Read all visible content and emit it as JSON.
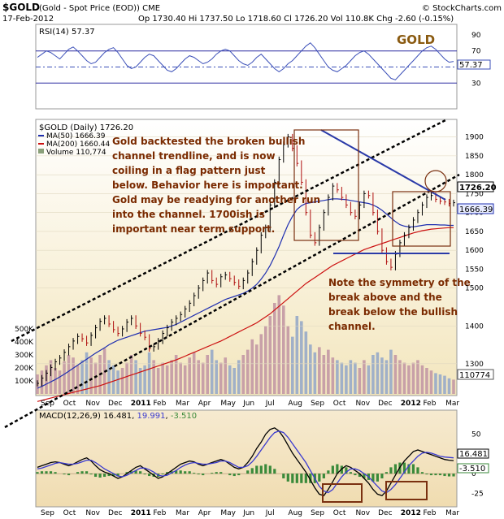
{
  "header": {
    "symbol": "$GOLD",
    "name": "(Gold - Spot Price (EOD)) CME",
    "credit": "© StockCharts.com",
    "date": "17-Feb-2012",
    "ohlc": "Op 1730.40  Hi 1737.50  Lo 1718.60  Cl 1726.20  Vol 110.8K  Chg -2.60 (-0.15%)"
  },
  "colors": {
    "price_line": "#000000",
    "ma50": "#1f2fb0",
    "ma200": "#cc1010",
    "volume_up": "#c8a0a8",
    "volume_down": "#a0b0c8",
    "rsi_line": "#3b4fb8",
    "macd_line": "#000000",
    "signal_line": "#3a3ad0",
    "hist": "#3a8a3a",
    "annotation_text": "#7a2a00",
    "box": "#7a3010",
    "panel_top": "#ffffff",
    "panel_bottom": "#f0e2b8"
  },
  "chart_data": [
    {
      "type": "line",
      "panel": "rsi",
      "label": "RSI(14) 57.37",
      "watermark": "GOLD",
      "ylim": [
        0,
        100
      ],
      "y_ticks": [
        30,
        50,
        70,
        90
      ],
      "reference_lines": [
        30,
        50,
        70
      ],
      "last_value": "57.37",
      "series": [
        {
          "name": "RSI(14)",
          "values": [
            62,
            66,
            70,
            68,
            64,
            60,
            66,
            72,
            75,
            70,
            64,
            58,
            54,
            56,
            62,
            68,
            72,
            74,
            68,
            60,
            52,
            48,
            50,
            56,
            62,
            66,
            64,
            58,
            52,
            46,
            44,
            48,
            54,
            60,
            64,
            62,
            58,
            54,
            56,
            60,
            66,
            70,
            72,
            70,
            64,
            58,
            54,
            52,
            56,
            62,
            66,
            60,
            54,
            48,
            44,
            48,
            54,
            58,
            64,
            70,
            76,
            80,
            74,
            66,
            58,
            50,
            46,
            44,
            48,
            52,
            58,
            64,
            68,
            70,
            66,
            60,
            54,
            48,
            42,
            36,
            34,
            40,
            46,
            52,
            58,
            64,
            70,
            74,
            76,
            72,
            66,
            60,
            56,
            57
          ]
        }
      ]
    },
    {
      "type": "line",
      "panel": "price",
      "title": "$GOLD (Daily) 1726.20",
      "legend": [
        "MA(50) 1666.39",
        "MA(200) 1660.44",
        "Volume 110,774"
      ],
      "x_ticks": [
        "Sep",
        "Oct",
        "Nov",
        "Dec",
        "2011",
        "Feb",
        "Mar",
        "Apr",
        "May",
        "Jun",
        "Jul",
        "Aug",
        "Sep",
        "Oct",
        "Nov",
        "Dec",
        "2012",
        "Feb",
        "Mar"
      ],
      "y_ticks": [
        1300,
        1400,
        1500,
        1550,
        1600,
        1650,
        1700,
        1750,
        1800,
        1850,
        1900
      ],
      "ylim": [
        1220,
        1940
      ],
      "volume_ticks": [
        "100K",
        "200K",
        "300K",
        "400K",
        "500K"
      ],
      "last_price": "1726.20",
      "last_ma50": "1666.39",
      "last_ma200": "1660.44",
      "last_volume": "110774",
      "x": [
        0,
        2,
        4,
        6,
        8,
        10,
        12,
        14,
        16,
        18,
        20,
        22,
        24,
        26,
        28,
        30,
        32,
        34,
        36,
        38,
        40,
        42,
        44,
        46,
        48,
        50,
        52,
        54,
        56,
        58,
        60,
        62,
        64,
        66,
        68,
        70,
        72,
        74,
        76,
        78,
        80,
        82,
        84,
        86,
        88,
        90,
        92,
        94,
        96,
        98,
        100,
        102,
        104,
        106,
        108,
        110,
        112,
        114,
        116,
        118,
        120,
        122,
        124,
        126,
        128,
        130,
        132,
        134,
        136,
        138,
        140,
        142,
        144,
        146,
        148,
        150,
        152,
        154,
        156,
        158,
        160,
        162,
        164,
        166,
        168,
        170,
        172,
        174,
        176,
        178,
        180,
        182,
        184,
        186
      ],
      "series": [
        {
          "name": "$GOLD",
          "values": [
            1248,
            1262,
            1275,
            1290,
            1305,
            1315,
            1330,
            1345,
            1360,
            1372,
            1366,
            1355,
            1375,
            1395,
            1412,
            1420,
            1405,
            1390,
            1380,
            1392,
            1410,
            1420,
            1400,
            1380,
            1370,
            1340,
            1345,
            1360,
            1380,
            1395,
            1410,
            1420,
            1430,
            1445,
            1460,
            1480,
            1500,
            1520,
            1540,
            1520,
            1510,
            1530,
            1535,
            1525,
            1515,
            1505,
            1520,
            1540,
            1570,
            1600,
            1640,
            1660,
            1720,
            1780,
            1840,
            1880,
            1900,
            1870,
            1830,
            1780,
            1700,
            1640,
            1620,
            1660,
            1700,
            1740,
            1770,
            1760,
            1740,
            1720,
            1700,
            1690,
            1720,
            1750,
            1745,
            1700,
            1650,
            1600,
            1570,
            1555,
            1590,
            1620,
            1640,
            1660,
            1680,
            1700,
            1720,
            1740,
            1745,
            1735,
            1730,
            1728,
            1724,
            1726
          ]
        },
        {
          "name": "MA(50)",
          "values": [
            1235,
            1240,
            1246,
            1252,
            1258,
            1265,
            1272,
            1280,
            1288,
            1296,
            1304,
            1312,
            1320,
            1328,
            1335,
            1342,
            1350,
            1356,
            1362,
            1366,
            1370,
            1374,
            1378,
            1382,
            1386,
            1388,
            1390,
            1392,
            1394,
            1396,
            1400,
            1404,
            1410,
            1416,
            1422,
            1428,
            1434,
            1440,
            1446,
            1452,
            1458,
            1464,
            1470,
            1474,
            1478,
            1482,
            1486,
            1492,
            1500,
            1510,
            1524,
            1540,
            1560,
            1584,
            1610,
            1640,
            1668,
            1690,
            1708,
            1718,
            1724,
            1726,
            1728,
            1730,
            1732,
            1734,
            1736,
            1736,
            1735,
            1734,
            1732,
            1730,
            1728,
            1726,
            1724,
            1720,
            1714,
            1706,
            1696,
            1686,
            1676,
            1668,
            1664,
            1662,
            1662,
            1664,
            1666,
            1668,
            1668,
            1668,
            1667,
            1667,
            1666,
            1666
          ]
        },
        {
          "name": "MA(200)",
          "values": [
            1200,
            1203,
            1206,
            1209,
            1212,
            1215,
            1218,
            1221,
            1224,
            1227,
            1230,
            1233,
            1236,
            1239,
            1242,
            1246,
            1250,
            1254,
            1258,
            1262,
            1266,
            1270,
            1274,
            1278,
            1282,
            1286,
            1290,
            1294,
            1298,
            1302,
            1306,
            1310,
            1315,
            1320,
            1325,
            1330,
            1335,
            1340,
            1345,
            1350,
            1355,
            1360,
            1366,
            1372,
            1378,
            1384,
            1390,
            1396,
            1402,
            1408,
            1416,
            1424,
            1432,
            1442,
            1452,
            1462,
            1472,
            1482,
            1492,
            1502,
            1512,
            1520,
            1528,
            1536,
            1544,
            1552,
            1560,
            1566,
            1572,
            1578,
            1584,
            1590,
            1596,
            1602,
            1606,
            1610,
            1614,
            1618,
            1622,
            1626,
            1630,
            1634,
            1638,
            1642,
            1646,
            1649,
            1652,
            1654,
            1656,
            1657,
            1658,
            1659,
            1660,
            1660
          ]
        }
      ],
      "volume": [
        150,
        180,
        220,
        260,
        200,
        180,
        250,
        300,
        280,
        220,
        260,
        320,
        280,
        240,
        300,
        350,
        260,
        220,
        180,
        200,
        240,
        300,
        260,
        200,
        220,
        320,
        260,
        200,
        240,
        220,
        260,
        300,
        240,
        220,
        280,
        320,
        260,
        240,
        300,
        340,
        260,
        240,
        280,
        220,
        200,
        260,
        300,
        340,
        420,
        380,
        460,
        520,
        600,
        700,
        760,
        680,
        520,
        440,
        600,
        560,
        480,
        380,
        320,
        360,
        300,
        340,
        280,
        260,
        240,
        220,
        260,
        240,
        200,
        260,
        220,
        300,
        320,
        280,
        260,
        340,
        300,
        260,
        240,
        220,
        240,
        260,
        220,
        200,
        180,
        160,
        150,
        140,
        120,
        110
      ]
    },
    {
      "type": "line",
      "panel": "macd",
      "label": "MACD(12,26,9) 16.481, 19.991, -3.510",
      "y_ticks": [
        50,
        25,
        0,
        -25
      ],
      "ylim": [
        -40,
        65
      ],
      "last_macd": "16.481",
      "last_signal": "19.991",
      "last_hist": "-3.510",
      "series": [
        {
          "name": "MACD",
          "values": [
            8,
            10,
            12,
            14,
            15,
            14,
            12,
            10,
            12,
            15,
            18,
            20,
            16,
            10,
            5,
            2,
            0,
            -3,
            -6,
            -4,
            0,
            4,
            8,
            10,
            6,
            2,
            -2,
            -6,
            -4,
            0,
            4,
            8,
            12,
            14,
            16,
            15,
            12,
            10,
            12,
            14,
            16,
            18,
            16,
            12,
            8,
            6,
            8,
            14,
            22,
            32,
            40,
            50,
            56,
            58,
            54,
            46,
            36,
            26,
            18,
            10,
            2,
            -8,
            -18,
            -26,
            -28,
            -20,
            -10,
            0,
            6,
            10,
            8,
            4,
            0,
            -6,
            -12,
            -20,
            -26,
            -28,
            -22,
            -12,
            -2,
            8,
            16,
            22,
            28,
            30,
            28,
            26,
            24,
            22,
            20,
            18,
            17,
            16.5
          ]
        },
        {
          "name": "Signal",
          "values": [
            6,
            7,
            9,
            11,
            13,
            14,
            13,
            12,
            12,
            13,
            15,
            17,
            17,
            14,
            10,
            6,
            3,
            0,
            -3,
            -4,
            -2,
            1,
            4,
            7,
            7,
            5,
            2,
            -2,
            -3,
            -2,
            1,
            4,
            8,
            11,
            13,
            14,
            13,
            12,
            12,
            13,
            14,
            16,
            16,
            14,
            11,
            8,
            8,
            10,
            15,
            22,
            30,
            38,
            46,
            52,
            54,
            52,
            46,
            38,
            30,
            22,
            14,
            4,
            -6,
            -16,
            -22,
            -24,
            -20,
            -12,
            -4,
            2,
            6,
            6,
            4,
            0,
            -4,
            -10,
            -16,
            -22,
            -24,
            -20,
            -14,
            -6,
            2,
            10,
            16,
            22,
            26,
            27,
            26,
            24,
            22,
            21,
            20.5,
            20
          ]
        }
      ],
      "x_ticks": [
        "Sep",
        "Oct",
        "Nov",
        "Dec",
        "2011",
        "Feb",
        "Mar",
        "Apr",
        "May",
        "Jun",
        "Jul",
        "Aug",
        "Sep",
        "Oct",
        "Nov",
        "Dec",
        "2012",
        "Feb",
        "Mar"
      ]
    }
  ],
  "annotations": {
    "main": "Gold backtested the broken bullish channel trendline, and is now coiling in a flag pattern just below. Behavior here is important. Gold may be readying for another run into the channel. 1700ish is important near term support.",
    "symmetry": "Note the symmetry of the break above and the break below the bullish channel."
  }
}
